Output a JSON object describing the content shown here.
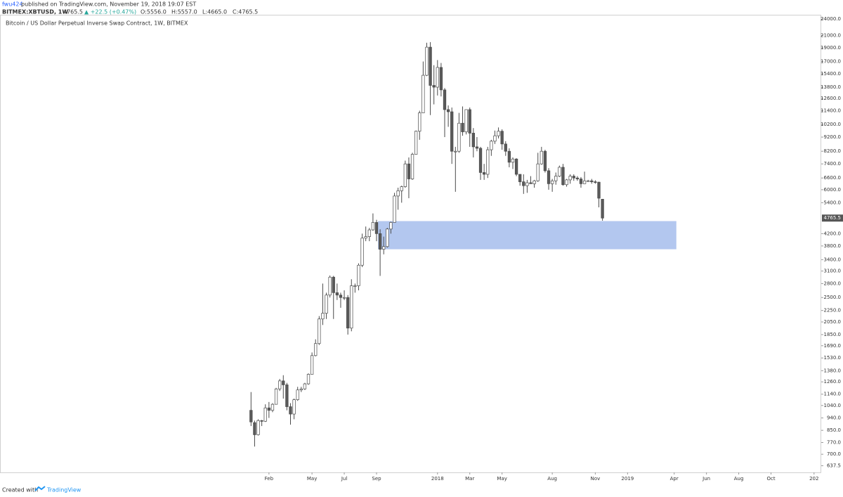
{
  "header": {
    "author": "fwu424",
    "published": "published on TradingView.com, November 19, 2018 19:07 EST",
    "symbol": "BITMEX:XBTUSD, 1W",
    "last": "4765.5",
    "change": "▲ +22.5 (+0.47%)",
    "o": "O:5556.0",
    "h": "H:5557.0",
    "l": "L:4665.0",
    "c": "C:4765.5"
  },
  "footer": {
    "created": "Created with",
    "brand": "TradingView"
  },
  "chart_data": {
    "type": "candlestick",
    "title": "Bitcoin / US Dollar Perpetual Inverse Swap Contract, 1W, BITMEX",
    "log_scale": true,
    "up_color": "#ffffff",
    "down_color": "#5a5a5a",
    "outline_color": "#4a4a4a",
    "open": [
      1000,
      905,
      820,
      920,
      915,
      1020,
      1000,
      1050,
      1190,
      1270,
      1230,
      1030,
      970,
      1090,
      1180,
      1190,
      1240,
      1340,
      1560,
      1720,
      2100,
      2200,
      2550,
      2950,
      2600,
      2550,
      2500,
      2500,
      1950,
      2750,
      2750,
      3250,
      4050,
      4100,
      4330,
      4600,
      4200,
      3700,
      3780,
      4360,
      4600,
      5700,
      5950,
      6150,
      7400,
      6550,
      8000,
      9650,
      11200,
      15200,
      19100,
      14000,
      13800,
      16200,
      13500,
      11500,
      11300,
      8200,
      8200,
      10300,
      9600,
      11500,
      9500,
      8500,
      8400,
      6900,
      6800,
      8300,
      8900,
      9300,
      9650,
      8700,
      8200,
      7500,
      7700,
      6800,
      6400,
      6200,
      6350,
      6300,
      6450,
      7400,
      8200,
      7000,
      6300,
      6450,
      6700,
      7200,
      6250,
      6500,
      6700,
      6600,
      6550,
      6300,
      6450,
      6450,
      6400,
      6380,
      5556
    ],
    "high": [
      1160,
      920,
      930,
      925,
      1050,
      1070,
      1060,
      1200,
      1290,
      1330,
      1250,
      1060,
      1100,
      1210,
      1210,
      1250,
      1350,
      1600,
      1780,
      2150,
      2800,
      2600,
      2990,
      2980,
      2800,
      2600,
      2650,
      2550,
      2900,
      2800,
      3300,
      4200,
      4450,
      4400,
      4950,
      4700,
      4350,
      4100,
      4400,
      4630,
      5850,
      6100,
      6200,
      7600,
      7800,
      8100,
      9700,
      11400,
      17000,
      19800,
      19900,
      16500,
      17200,
      16800,
      13700,
      11900,
      11700,
      8500,
      11200,
      11800,
      11500,
      11700,
      9900,
      9200,
      8500,
      7400,
      8500,
      9000,
      9700,
      9950,
      9800,
      8900,
      8400,
      7800,
      7750,
      6800,
      6800,
      6500,
      6700,
      6500,
      8100,
      8500,
      8300,
      7150,
      6550,
      6900,
      7300,
      7400,
      6550,
      6800,
      6800,
      6700,
      6650,
      6950,
      6500,
      6550,
      6480,
      6400,
      5557
    ],
    "low": [
      880,
      745,
      815,
      880,
      910,
      940,
      985,
      1050,
      1170,
      1100,
      1000,
      890,
      930,
      1080,
      1160,
      1180,
      1230,
      1340,
      1550,
      1700,
      2000,
      2100,
      2500,
      2100,
      2450,
      2300,
      2450,
      1850,
      1900,
      2600,
      2650,
      3200,
      3950,
      3950,
      4300,
      3950,
      2980,
      3550,
      3750,
      4200,
      4600,
      5100,
      5400,
      6100,
      5600,
      6500,
      8000,
      9000,
      11200,
      15100,
      11000,
      12000,
      12900,
      12800,
      9200,
      10000,
      7400,
      5900,
      8100,
      9300,
      9400,
      8500,
      7800,
      8200,
      6500,
      6500,
      6600,
      7900,
      8700,
      9100,
      8300,
      7900,
      7200,
      7100,
      6700,
      6200,
      5800,
      5850,
      6300,
      6100,
      6400,
      7350,
      6900,
      6000,
      5900,
      6250,
      6650,
      6200,
      6150,
      6300,
      6450,
      6450,
      6100,
      6300,
      6400,
      6300,
      6300,
      5200,
      4665
    ],
    "close": [
      910,
      820,
      920,
      915,
      1020,
      1000,
      1050,
      1190,
      1270,
      1230,
      1030,
      970,
      1090,
      1180,
      1190,
      1240,
      1340,
      1560,
      1720,
      2100,
      2200,
      2550,
      2950,
      2600,
      2550,
      2500,
      2500,
      1950,
      2750,
      2750,
      3250,
      4050,
      4100,
      4330,
      4600,
      4200,
      3700,
      3780,
      4360,
      4600,
      5700,
      5950,
      6150,
      7400,
      6550,
      8000,
      9650,
      11200,
      15200,
      19100,
      14000,
      13800,
      16200,
      13500,
      11500,
      11300,
      8200,
      8200,
      10300,
      9600,
      11500,
      9500,
      8500,
      8400,
      6900,
      6800,
      8300,
      8900,
      9300,
      9650,
      8700,
      8200,
      7500,
      7700,
      6800,
      6400,
      6200,
      6350,
      6300,
      6450,
      7400,
      8200,
      7000,
      6300,
      6450,
      6700,
      7200,
      6250,
      6500,
      6700,
      6600,
      6550,
      6300,
      6450,
      6450,
      6400,
      6380,
      5600,
      4765.5
    ],
    "zone": {
      "low": 3700,
      "high": 4650,
      "x": [
        35.4,
        118.6
      ],
      "color": "#b3c7ef"
    },
    "last_price": {
      "value": 4765.5,
      "label": "4765.5"
    },
    "xlim": [
      -70,
      159
    ],
    "xticks": [
      {
        "value": 5,
        "label": "Feb"
      },
      {
        "value": 17,
        "label": "May"
      },
      {
        "value": 26,
        "label": "Jul"
      },
      {
        "value": 35,
        "label": "Sep"
      },
      {
        "value": 52,
        "label": "2018"
      },
      {
        "value": 61,
        "label": "Mar"
      },
      {
        "value": 70,
        "label": "May"
      },
      {
        "value": 84,
        "label": "Aug"
      },
      {
        "value": 96,
        "label": "Nov"
      },
      {
        "value": 105,
        "label": "2019"
      },
      {
        "value": 118,
        "label": "Apr"
      },
      {
        "value": 127,
        "label": "Jun"
      },
      {
        "value": 136,
        "label": "Aug"
      },
      {
        "value": 145,
        "label": "Oct"
      },
      {
        "value": 157,
        "label": "202"
      }
    ],
    "ylim": [
      604,
      24850
    ],
    "yticks": [
      {
        "value": 24000,
        "label": "24000.0"
      },
      {
        "value": 21000,
        "label": "21000.0"
      },
      {
        "value": 19000,
        "label": "19000.0"
      },
      {
        "value": 17000,
        "label": "17000.0"
      },
      {
        "value": 15400,
        "label": "15400.0"
      },
      {
        "value": 13800,
        "label": "13800.0"
      },
      {
        "value": 12600,
        "label": "12600.0"
      },
      {
        "value": 11400,
        "label": "11400.0"
      },
      {
        "value": 10200,
        "label": "10200.0"
      },
      {
        "value": 9200,
        "label": "9200.0"
      },
      {
        "value": 8200,
        "label": "8200.0"
      },
      {
        "value": 7400,
        "label": "7400.0"
      },
      {
        "value": 6600,
        "label": "6600.0"
      },
      {
        "value": 6000,
        "label": "6000.0"
      },
      {
        "value": 5400,
        "label": "5400.0"
      },
      {
        "value": 4200,
        "label": "4200.0"
      },
      {
        "value": 3800,
        "label": "3800.0"
      },
      {
        "value": 3400,
        "label": "3400.0"
      },
      {
        "value": 3100,
        "label": "3100.0"
      },
      {
        "value": 2800,
        "label": "2800.0"
      },
      {
        "value": 2500,
        "label": "2500.0"
      },
      {
        "value": 2250,
        "label": "2250.0"
      },
      {
        "value": 2050,
        "label": "2050.0"
      },
      {
        "value": 1850,
        "label": "1850.0"
      },
      {
        "value": 1690,
        "label": "1690.0"
      },
      {
        "value": 1530,
        "label": "1530.0"
      },
      {
        "value": 1380,
        "label": "1380.0"
      },
      {
        "value": 1260,
        "label": "1260.0"
      },
      {
        "value": 1140,
        "label": "1140.0"
      },
      {
        "value": 1040,
        "label": "1040.0"
      },
      {
        "value": 940,
        "label": "940.0"
      },
      {
        "value": 850,
        "label": "850.0"
      },
      {
        "value": 770,
        "label": "770.0"
      },
      {
        "value": 700,
        "label": "700.0"
      },
      637.5
    ]
  }
}
